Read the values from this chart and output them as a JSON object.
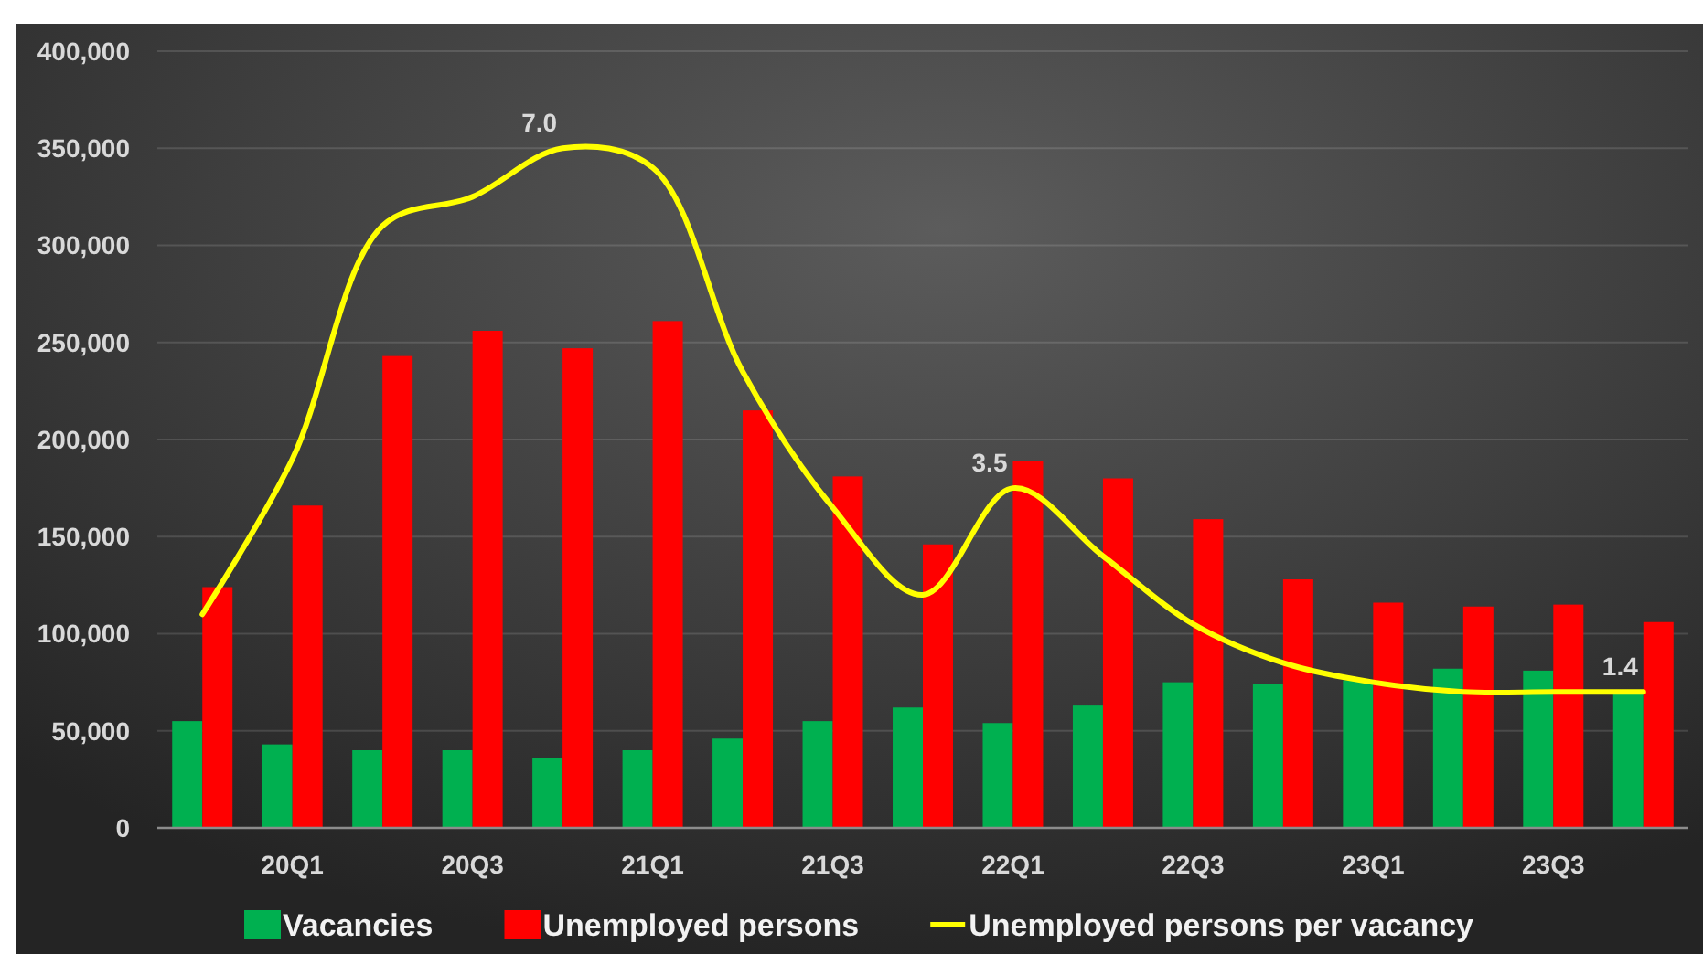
{
  "chart_data": {
    "type": "bar",
    "categories": [
      null,
      "20Q1",
      null,
      "20Q3",
      null,
      "21Q1",
      null,
      "21Q3",
      null,
      "22Q1",
      null,
      "22Q3",
      null,
      "23Q1",
      null,
      "23Q3",
      null
    ],
    "series": [
      {
        "name": "Vacancies",
        "color": "#00b050",
        "values": [
          55000,
          43000,
          40000,
          40000,
          36000,
          40000,
          46000,
          55000,
          62000,
          54000,
          63000,
          75000,
          74000,
          76000,
          82000,
          81000,
          71000
        ]
      },
      {
        "name": "Unemployed persons",
        "color": "#ff0000",
        "values": [
          124000,
          166000,
          243000,
          256000,
          247000,
          261000,
          215000,
          181000,
          146000,
          189000,
          180000,
          159000,
          128000,
          116000,
          114000,
          115000,
          106000
        ]
      },
      {
        "name": "Unemployed persons per vacancy",
        "type": "line",
        "axis": "y2",
        "color": "#ffff00",
        "values": [
          2.2,
          3.8,
          6.2,
          6.5,
          7.0,
          6.8,
          4.7,
          3.3,
          2.4,
          3.5,
          2.8,
          2.1,
          1.7,
          1.5,
          1.4,
          1.4,
          1.4
        ],
        "value_labels": [
          null,
          null,
          null,
          null,
          "7.0",
          null,
          null,
          null,
          null,
          "3.5",
          null,
          null,
          null,
          null,
          null,
          null,
          "1.4"
        ]
      }
    ],
    "ylim": [
      0,
      400000
    ],
    "yticks": [
      0,
      {
        "value": 50000,
        "label": "50,000"
      },
      {
        "value": 100000,
        "label": "100,000"
      },
      {
        "value": 150000,
        "label": "150,000"
      },
      {
        "value": 200000,
        "label": "200,000"
      },
      {
        "value": 250000,
        "label": "250,000"
      },
      {
        "value": 300000,
        "label": "300,000"
      },
      {
        "value": 350000,
        "label": "350,000"
      },
      {
        "value": 400000,
        "label": "400,000"
      }
    ],
    "y2lim": [
      0,
      8
    ],
    "grid": "y",
    "legend": "bottom"
  }
}
